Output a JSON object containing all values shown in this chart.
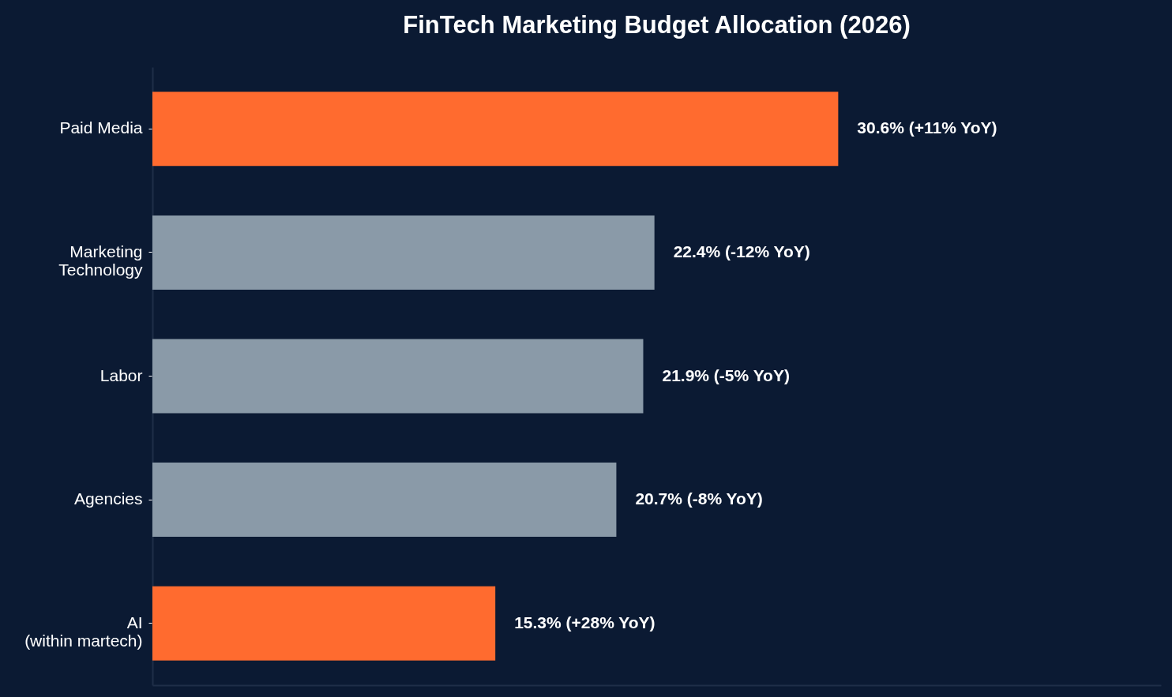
{
  "chart_data": {
    "type": "bar",
    "orientation": "horizontal",
    "title": "FinTech Marketing Budget Allocation (2026)",
    "categories": [
      "Paid Media",
      "Marketing\nTechnology",
      "Labor",
      "Agencies",
      "AI\n(within martech)"
    ],
    "values": [
      30.6,
      22.4,
      21.9,
      20.7,
      15.3
    ],
    "colors": [
      "#ff6b2f",
      "#8a9aa8",
      "#8a9aa8",
      "#8a9aa8",
      "#ff6b2f"
    ],
    "value_labels": [
      "30.6%  (+11% YoY)",
      "22.4%  (-12% YoY)",
      "21.9%  (-5% YoY)",
      "20.7%  (-8% YoY)",
      "15.3%  (+28% YoY)"
    ],
    "xlim": [
      0,
      45
    ],
    "tick_labels": "y"
  }
}
